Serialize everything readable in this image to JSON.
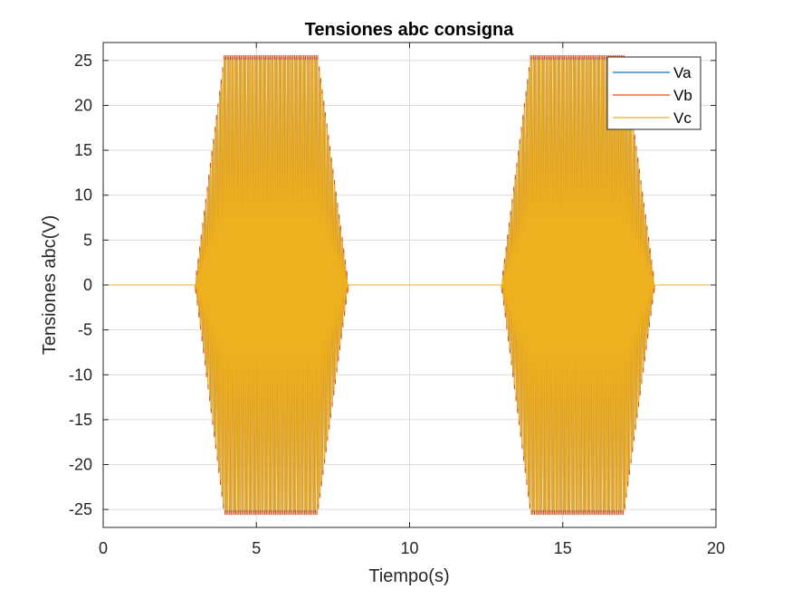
{
  "chart_data": {
    "type": "line",
    "title": "Tensiones abc consigna",
    "xlabel": "Tiempo(s)",
    "ylabel": "Tensiones abc(V)",
    "xlim": [
      0,
      20
    ],
    "ylim": [
      -27,
      27
    ],
    "xticks": [
      0,
      5,
      10,
      15,
      20
    ],
    "yticks": [
      -25,
      -20,
      -15,
      -10,
      -5,
      0,
      5,
      10,
      15,
      20,
      25
    ],
    "xtick_labels": [
      "0",
      "5",
      "10",
      "15",
      "20"
    ],
    "ytick_labels": [
      "-25",
      "-20",
      "-15",
      "-10",
      "-5",
      "0",
      "5",
      "10",
      "15",
      "20",
      "25"
    ],
    "grid": true,
    "legend_position": "top-right",
    "series": [
      {
        "name": "Va",
        "color": "#0072BD"
      },
      {
        "name": "Vb",
        "color": "#D95319"
      },
      {
        "name": "Vc",
        "color": "#EDB120"
      }
    ],
    "envelope": {
      "description_units": "time in seconds, amplitude in volts",
      "time": [
        0,
        3.0,
        3.95,
        7.0,
        8.0,
        13.0,
        13.95,
        17.0,
        18.0,
        20
      ],
      "amplitude": [
        0,
        0,
        25.3,
        25.3,
        0,
        0,
        25.3,
        25.3,
        0,
        0
      ]
    }
  }
}
